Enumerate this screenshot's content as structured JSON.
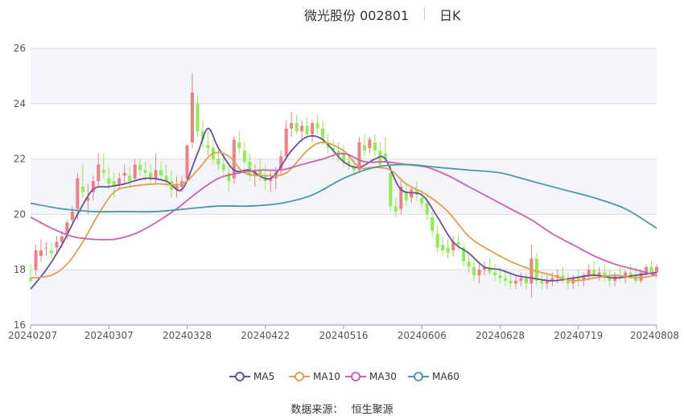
{
  "header": {
    "title": "微光股份 002801",
    "period": "日K"
  },
  "source": {
    "label": "数据来源：",
    "value": "恒生聚源"
  },
  "colors": {
    "up": "#f08080",
    "down": "#90ee50",
    "ma5": "#6b4fa0",
    "ma10": "#e0a050",
    "ma30": "#d060a8",
    "ma60": "#4a9aa0",
    "band": "#f4f5fb",
    "grid": "#dcdcdc"
  },
  "chart_data": {
    "type": "candlestick",
    "ylim": [
      16,
      26
    ],
    "yticks": [
      "16",
      "18",
      "20",
      "22",
      "24",
      "26"
    ],
    "xticks": [
      "20240207",
      "20240307",
      "20240328",
      "20240422",
      "20240516",
      "20240606",
      "20240628",
      "20240719",
      "20240808"
    ],
    "n_days": 121,
    "xtick_days": [
      0,
      15,
      30,
      45,
      60,
      75,
      90,
      105,
      120
    ],
    "legend": [
      "MA5",
      "MA10",
      "MA30",
      "MA60"
    ],
    "candles": [
      [
        17.7,
        18.2,
        17.5,
        17.6
      ],
      [
        18.0,
        18.9,
        17.8,
        18.7
      ],
      [
        18.5,
        19.1,
        18.3,
        18.7
      ],
      [
        18.8,
        19.0,
        18.5,
        18.8
      ],
      [
        18.7,
        19.0,
        18.4,
        18.6
      ],
      [
        18.8,
        19.2,
        18.6,
        19.0
      ],
      [
        19.0,
        19.4,
        18.8,
        19.2
      ],
      [
        19.3,
        19.8,
        19.1,
        19.7
      ],
      [
        19.8,
        20.3,
        19.7,
        20.1
      ],
      [
        20.2,
        21.5,
        19.8,
        21.3
      ],
      [
        21.0,
        21.8,
        20.6,
        20.8
      ],
      [
        20.5,
        21.1,
        20.0,
        20.6
      ],
      [
        20.8,
        21.4,
        20.5,
        21.2
      ],
      [
        21.2,
        22.2,
        21.0,
        21.8
      ],
      [
        21.6,
        22.2,
        21.3,
        21.5
      ],
      [
        21.3,
        21.7,
        20.9,
        21.1
      ],
      [
        21.2,
        21.5,
        20.6,
        21.0
      ],
      [
        21.1,
        21.5,
        20.9,
        21.3
      ],
      [
        21.4,
        21.8,
        21.1,
        21.5
      ],
      [
        21.4,
        21.7,
        21.0,
        21.2
      ],
      [
        21.3,
        22.0,
        21.2,
        21.8
      ],
      [
        21.8,
        22.0,
        21.4,
        21.6
      ],
      [
        21.6,
        21.9,
        21.2,
        21.5
      ],
      [
        21.5,
        21.8,
        21.1,
        21.3
      ],
      [
        21.3,
        22.2,
        21.1,
        21.6
      ],
      [
        21.6,
        21.9,
        21.2,
        21.4
      ],
      [
        21.4,
        21.8,
        21.0,
        21.2
      ],
      [
        21.2,
        21.6,
        20.6,
        20.9
      ],
      [
        20.9,
        21.4,
        20.6,
        21.1
      ],
      [
        21.0,
        21.4,
        20.8,
        21.2
      ],
      [
        21.3,
        22.5,
        21.2,
        22.5
      ],
      [
        22.6,
        25.1,
        22.4,
        24.4
      ],
      [
        24.0,
        24.3,
        22.8,
        23.0
      ],
      [
        23.0,
        23.4,
        22.4,
        22.7
      ],
      [
        22.5,
        23.0,
        22.1,
        22.4
      ],
      [
        22.4,
        22.7,
        21.8,
        22.0
      ],
      [
        22.0,
        22.4,
        21.6,
        21.8
      ],
      [
        21.8,
        22.3,
        21.4,
        21.6
      ],
      [
        21.5,
        21.9,
        20.8,
        21.2
      ],
      [
        21.3,
        22.8,
        21.1,
        22.7
      ],
      [
        22.6,
        23.0,
        22.2,
        22.4
      ],
      [
        22.3,
        22.6,
        21.8,
        21.9
      ],
      [
        21.9,
        22.2,
        21.2,
        21.4
      ],
      [
        21.4,
        21.8,
        21.0,
        21.6
      ],
      [
        21.6,
        22.0,
        21.2,
        21.4
      ],
      [
        21.4,
        21.8,
        20.9,
        21.2
      ],
      [
        21.2,
        21.6,
        20.8,
        21.3
      ],
      [
        21.3,
        21.7,
        20.9,
        21.5
      ],
      [
        21.6,
        22.3,
        21.4,
        22.1
      ],
      [
        22.1,
        23.4,
        22.0,
        23.1
      ],
      [
        23.1,
        23.7,
        22.8,
        23.3
      ],
      [
        23.3,
        23.6,
        22.9,
        23.0
      ],
      [
        23.0,
        23.4,
        22.6,
        23.2
      ],
      [
        23.2,
        23.5,
        22.7,
        22.9
      ],
      [
        22.9,
        23.4,
        22.6,
        23.3
      ],
      [
        23.3,
        23.6,
        22.9,
        23.1
      ],
      [
        23.1,
        23.4,
        22.5,
        22.7
      ],
      [
        22.6,
        22.9,
        22.2,
        22.4
      ],
      [
        22.4,
        22.7,
        22.0,
        22.3
      ],
      [
        22.3,
        22.6,
        21.9,
        22.1
      ],
      [
        22.2,
        22.5,
        21.7,
        21.9
      ],
      [
        21.9,
        22.2,
        21.6,
        21.8
      ],
      [
        21.7,
        22.0,
        21.4,
        21.6
      ],
      [
        21.6,
        22.8,
        21.5,
        22.6
      ],
      [
        22.5,
        22.9,
        22.1,
        22.3
      ],
      [
        22.4,
        22.8,
        22.2,
        22.7
      ],
      [
        22.6,
        22.9,
        22.1,
        22.3
      ],
      [
        22.3,
        22.6,
        21.7,
        21.8
      ],
      [
        22.2,
        22.8,
        21.9,
        22.0
      ],
      [
        21.5,
        21.8,
        20.1,
        20.3
      ],
      [
        20.3,
        20.6,
        19.9,
        20.1
      ],
      [
        20.2,
        21.2,
        20.0,
        21.0
      ],
      [
        20.8,
        21.1,
        20.3,
        20.5
      ],
      [
        20.6,
        21.0,
        20.4,
        20.9
      ],
      [
        20.9,
        21.2,
        20.5,
        20.7
      ],
      [
        20.6,
        20.9,
        20.2,
        20.4
      ],
      [
        20.4,
        20.7,
        19.8,
        20.0
      ],
      [
        19.9,
        20.1,
        19.2,
        19.4
      ],
      [
        19.3,
        19.6,
        18.6,
        18.8
      ],
      [
        18.9,
        19.2,
        18.5,
        18.7
      ],
      [
        18.8,
        19.1,
        18.4,
        18.6
      ],
      [
        18.7,
        19.2,
        18.5,
        19.0
      ],
      [
        19.0,
        19.3,
        18.7,
        18.9
      ],
      [
        18.8,
        19.0,
        18.1,
        18.3
      ],
      [
        18.3,
        18.6,
        17.9,
        18.1
      ],
      [
        18.1,
        18.4,
        17.6,
        17.8
      ],
      [
        17.8,
        18.2,
        17.5,
        18.0
      ],
      [
        18.0,
        18.3,
        17.8,
        18.1
      ],
      [
        18.1,
        18.4,
        17.8,
        17.9
      ],
      [
        17.9,
        18.2,
        17.6,
        17.8
      ],
      [
        17.8,
        18.1,
        17.5,
        17.7
      ],
      [
        17.7,
        18.0,
        17.4,
        17.6
      ],
      [
        17.6,
        17.9,
        17.3,
        17.5
      ],
      [
        17.5,
        17.8,
        17.3,
        17.6
      ],
      [
        17.6,
        17.9,
        17.4,
        17.7
      ],
      [
        17.7,
        17.9,
        17.3,
        17.5
      ],
      [
        17.5,
        18.9,
        17.0,
        18.4
      ],
      [
        18.4,
        18.6,
        17.4,
        17.6
      ],
      [
        17.6,
        17.9,
        17.3,
        17.5
      ],
      [
        17.5,
        17.8,
        17.3,
        17.6
      ],
      [
        17.6,
        17.9,
        17.4,
        17.7
      ],
      [
        17.7,
        18.0,
        17.5,
        17.8
      ],
      [
        17.8,
        18.1,
        17.5,
        17.6
      ],
      [
        17.6,
        17.9,
        17.3,
        17.5
      ],
      [
        17.5,
        17.8,
        17.3,
        17.7
      ],
      [
        17.7,
        18.0,
        17.4,
        17.6
      ],
      [
        17.6,
        17.9,
        17.4,
        17.8
      ],
      [
        17.8,
        18.2,
        17.6,
        18.0
      ],
      [
        18.0,
        18.3,
        17.7,
        17.8
      ],
      [
        17.8,
        18.1,
        17.6,
        17.9
      ],
      [
        17.9,
        18.2,
        17.6,
        17.7
      ],
      [
        17.7,
        18.0,
        17.4,
        17.6
      ],
      [
        17.6,
        17.9,
        17.4,
        17.8
      ],
      [
        17.8,
        18.1,
        17.6,
        17.7
      ],
      [
        17.7,
        18.0,
        17.5,
        17.9
      ],
      [
        17.9,
        18.2,
        17.7,
        17.8
      ],
      [
        17.8,
        18.1,
        17.5,
        17.6
      ],
      [
        17.6,
        18.0,
        17.5,
        17.9
      ],
      [
        17.9,
        18.2,
        17.7,
        18.1
      ],
      [
        18.1,
        18.3,
        17.8,
        17.9
      ],
      [
        17.9,
        18.2,
        17.7,
        18.1
      ]
    ],
    "ma_series": [
      {
        "name": "MA5",
        "color": "#6b4fa0",
        "points": [
          [
            0,
            17.3
          ],
          [
            3,
            18.0
          ],
          [
            6,
            18.9
          ],
          [
            9,
            20.0
          ],
          [
            12,
            20.9
          ],
          [
            15,
            21.0
          ],
          [
            18,
            21.1
          ],
          [
            22,
            21.3
          ],
          [
            26,
            21.2
          ],
          [
            29,
            20.9
          ],
          [
            32,
            22.2
          ],
          [
            34,
            23.1
          ],
          [
            36,
            22.4
          ],
          [
            39,
            21.6
          ],
          [
            42,
            21.6
          ],
          [
            46,
            21.3
          ],
          [
            50,
            22.3
          ],
          [
            53,
            22.8
          ],
          [
            56,
            22.7
          ],
          [
            60,
            21.9
          ],
          [
            63,
            21.7
          ],
          [
            66,
            22.0
          ],
          [
            68,
            22.0
          ],
          [
            71,
            20.9
          ],
          [
            75,
            20.7
          ],
          [
            78,
            19.9
          ],
          [
            81,
            19.0
          ],
          [
            84,
            18.6
          ],
          [
            87,
            18.1
          ],
          [
            90,
            18.0
          ],
          [
            93,
            17.8
          ],
          [
            96,
            17.7
          ],
          [
            100,
            17.6
          ],
          [
            104,
            17.7
          ],
          [
            108,
            17.8
          ],
          [
            112,
            17.7
          ],
          [
            116,
            17.8
          ],
          [
            120,
            17.9
          ]
        ]
      },
      {
        "name": "MA10",
        "color": "#e0a050",
        "points": [
          [
            0,
            17.7
          ],
          [
            4,
            17.8
          ],
          [
            7,
            18.2
          ],
          [
            10,
            19.0
          ],
          [
            13,
            20.0
          ],
          [
            16,
            20.8
          ],
          [
            19,
            21.0
          ],
          [
            24,
            21.1
          ],
          [
            29,
            21.1
          ],
          [
            32,
            21.6
          ],
          [
            35,
            22.2
          ],
          [
            38,
            22.1
          ],
          [
            41,
            21.5
          ],
          [
            45,
            21.4
          ],
          [
            49,
            21.5
          ],
          [
            53,
            22.3
          ],
          [
            56,
            22.6
          ],
          [
            60,
            22.3
          ],
          [
            63,
            21.7
          ],
          [
            66,
            21.7
          ],
          [
            69,
            21.6
          ],
          [
            72,
            21.1
          ],
          [
            76,
            20.7
          ],
          [
            80,
            20.1
          ],
          [
            84,
            19.2
          ],
          [
            88,
            18.7
          ],
          [
            92,
            18.3
          ],
          [
            96,
            18.0
          ],
          [
            100,
            17.8
          ],
          [
            104,
            17.6
          ],
          [
            108,
            17.7
          ],
          [
            112,
            17.8
          ],
          [
            116,
            17.7
          ],
          [
            120,
            17.8
          ]
        ]
      },
      {
        "name": "MA30",
        "color": "#d060a8",
        "points": [
          [
            0,
            19.9
          ],
          [
            4,
            19.5
          ],
          [
            8,
            19.2
          ],
          [
            12,
            19.1
          ],
          [
            16,
            19.1
          ],
          [
            20,
            19.3
          ],
          [
            24,
            19.7
          ],
          [
            28,
            20.2
          ],
          [
            32,
            20.8
          ],
          [
            36,
            21.3
          ],
          [
            40,
            21.5
          ],
          [
            44,
            21.6
          ],
          [
            48,
            21.6
          ],
          [
            52,
            21.8
          ],
          [
            56,
            22.0
          ],
          [
            60,
            22.2
          ],
          [
            64,
            21.9
          ],
          [
            68,
            21.9
          ],
          [
            72,
            21.8
          ],
          [
            76,
            21.7
          ],
          [
            80,
            21.4
          ],
          [
            84,
            21.0
          ],
          [
            88,
            20.6
          ],
          [
            92,
            20.2
          ],
          [
            96,
            19.8
          ],
          [
            100,
            19.3
          ],
          [
            104,
            18.9
          ],
          [
            108,
            18.5
          ],
          [
            112,
            18.2
          ],
          [
            116,
            18.0
          ],
          [
            120,
            17.8
          ]
        ]
      },
      {
        "name": "MA60",
        "color": "#4a9aa0",
        "points": [
          [
            0,
            20.4
          ],
          [
            6,
            20.2
          ],
          [
            12,
            20.1
          ],
          [
            18,
            20.1
          ],
          [
            24,
            20.1
          ],
          [
            30,
            20.2
          ],
          [
            36,
            20.3
          ],
          [
            42,
            20.3
          ],
          [
            48,
            20.4
          ],
          [
            54,
            20.7
          ],
          [
            60,
            21.3
          ],
          [
            66,
            21.7
          ],
          [
            72,
            21.8
          ],
          [
            78,
            21.7
          ],
          [
            84,
            21.6
          ],
          [
            90,
            21.5
          ],
          [
            96,
            21.2
          ],
          [
            102,
            20.9
          ],
          [
            108,
            20.6
          ],
          [
            114,
            20.2
          ],
          [
            120,
            19.5
          ]
        ]
      }
    ]
  }
}
